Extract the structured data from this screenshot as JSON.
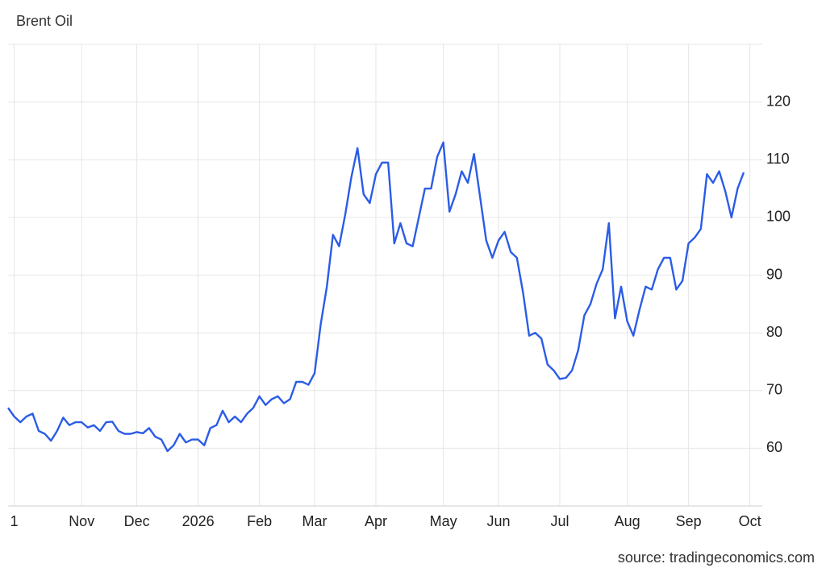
{
  "chart_data": {
    "type": "line",
    "title": "Brent Oil",
    "source": "source: tradingeconomics.com",
    "categories": [
      null,
      "1",
      null,
      null,
      null,
      null,
      null,
      null,
      null,
      null,
      null,
      null,
      "Nov",
      null,
      null,
      null,
      null,
      null,
      null,
      null,
      null,
      "Dec",
      null,
      null,
      null,
      null,
      null,
      null,
      null,
      null,
      null,
      "2026",
      null,
      null,
      null,
      null,
      null,
      null,
      null,
      null,
      null,
      "Feb",
      null,
      null,
      null,
      null,
      null,
      null,
      null,
      null,
      "Mar",
      null,
      null,
      null,
      null,
      null,
      null,
      null,
      null,
      null,
      "Apr",
      null,
      null,
      null,
      null,
      null,
      null,
      null,
      null,
      null,
      null,
      "May",
      null,
      null,
      null,
      null,
      null,
      null,
      null,
      null,
      "Jun",
      null,
      null,
      null,
      null,
      null,
      null,
      null,
      null,
      null,
      "Jul",
      null,
      null,
      null,
      null,
      null,
      null,
      null,
      null,
      null,
      null,
      "Aug",
      null,
      null,
      null,
      null,
      null,
      null,
      null,
      null,
      null,
      "Sep",
      null,
      null,
      null,
      null,
      null,
      null,
      null,
      null,
      null,
      "Oct"
    ],
    "series": [
      {
        "name": "Brent Oil",
        "color": "#2b5ce6",
        "values": [
          67,
          65.5,
          64.5,
          65.5,
          66,
          63,
          62.5,
          61.3,
          63,
          65.3,
          64,
          64.5,
          64.5,
          63.6,
          64,
          63,
          64.5,
          64.6,
          63,
          62.5,
          62.5,
          62.8,
          62.6,
          63.5,
          62,
          61.5,
          59.5,
          60.5,
          62.5,
          61,
          61.5,
          61.5,
          60.5,
          63.5,
          64,
          66.5,
          64.5,
          65.5,
          64.5,
          66,
          67,
          69,
          67.5,
          68.5,
          69,
          67.8,
          68.5,
          71.5,
          71.5,
          71,
          73,
          81.5,
          88,
          97,
          95,
          100.5,
          107,
          112,
          104,
          102.5,
          107.5,
          109.5,
          109.5,
          95.5,
          99,
          95.5,
          95,
          100,
          105,
          105,
          110.5,
          113,
          101,
          104,
          108,
          106,
          111,
          103.5,
          96,
          93,
          96,
          97.5,
          94,
          93,
          87,
          79.5,
          80,
          79,
          74.5,
          73.5,
          72,
          72.2,
          73.5,
          77,
          83,
          85,
          88.5,
          91,
          99,
          82.5,
          88,
          82,
          79.5,
          84,
          88,
          87.5,
          91,
          93,
          93,
          87.5,
          89,
          95.5,
          96.5,
          98,
          107.5,
          106,
          108,
          104.5,
          100,
          105,
          107.8,
          null
        ]
      }
    ],
    "ylim": [
      50,
      130
    ],
    "yticks": [
      60,
      70,
      80,
      90,
      100,
      110,
      120
    ],
    "grid": true
  }
}
